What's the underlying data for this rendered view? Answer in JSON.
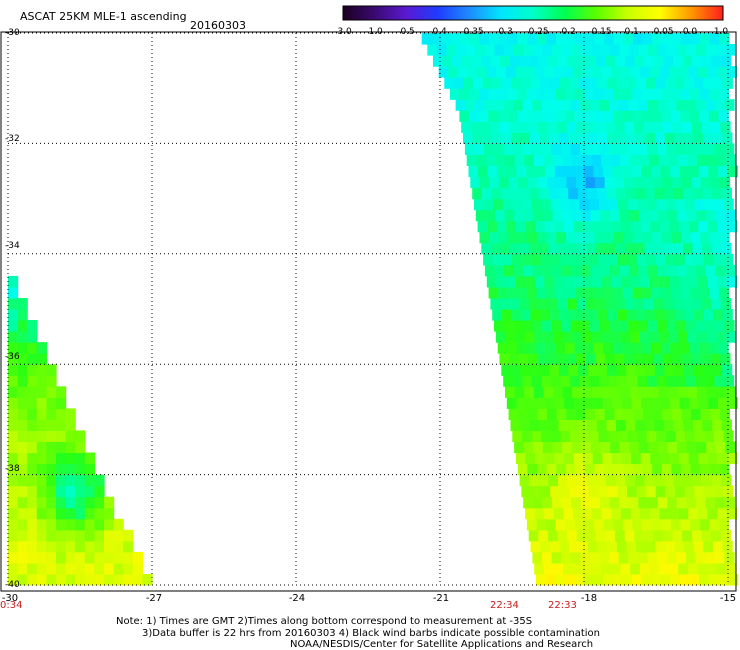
{
  "header": {
    "title": "ASCAT 25KM MLE-1 ascending",
    "date": "20160303"
  },
  "colorbar": {
    "labels": [
      "-3.0",
      "-1.0",
      "-0.5",
      "-0.4",
      "-0.35",
      "-0.3",
      "-0.25",
      "-0.2",
      "-0.15",
      "-0.1",
      "-0.05",
      "0.0",
      "1.0"
    ],
    "colors": [
      "#1a0020",
      "#3a0a70",
      "#5a1ad2",
      "#1e3cff",
      "#1e8cff",
      "#00e6ff",
      "#00ffc8",
      "#00ff50",
      "#5aff00",
      "#c8ff00",
      "#ffff00",
      "#ff9600",
      "#ff1e1e"
    ]
  },
  "chart_data": {
    "type": "heatmap",
    "title": "ASCAT 25KM MLE-1 ascending",
    "subtitle": "20160303",
    "xlim": [
      -30,
      -15
    ],
    "ylim": [
      -40,
      -30
    ],
    "x_ticks": [
      "-30",
      "-27",
      "-24",
      "-21",
      "-18",
      "-15"
    ],
    "y_ticks": [
      "-30",
      "-32",
      "-34",
      "-36",
      "-38",
      "-40"
    ],
    "grid": true,
    "value_range": [
      -3.0,
      1.0
    ],
    "pass_times": [
      {
        "lon": -30,
        "time": "0:34"
      },
      {
        "lon": -19.1,
        "time": "22:34"
      },
      {
        "lon": -18.4,
        "time": "22:33"
      }
    ],
    "swaths": [
      {
        "name": "west swath",
        "lon_range": [
          -30,
          -27.2
        ],
        "lat_range": [
          -40,
          -34.4
        ]
      },
      {
        "name": "east swath",
        "lon_range": [
          -20.9,
          -15
        ],
        "lat_range": [
          -40,
          -30
        ]
      }
    ],
    "typical_values": {
      "west_north": -0.3,
      "west_south": -0.08,
      "east_north": -0.3,
      "east_center": -0.22,
      "east_south": -0.07
    }
  },
  "notes": {
    "line1": "Note: 1) Times are GMT 2)Times along bottom correspond to measurement at -35S",
    "line2": "3)Data buffer is 22 hrs from 20160303 4) Black wind barbs indicate possible contamination",
    "line3": "NOAA/NESDIS/Center for Satellite Applications and Research"
  }
}
